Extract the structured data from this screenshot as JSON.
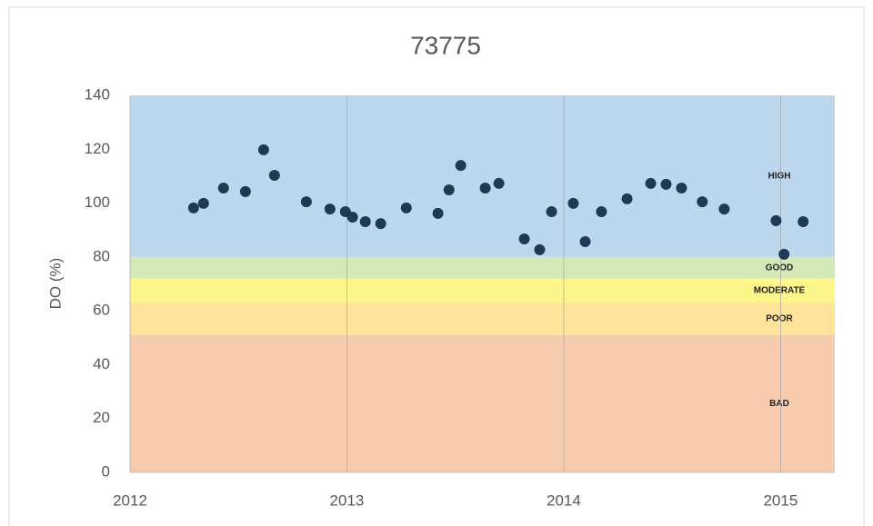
{
  "chart_data": {
    "type": "scatter",
    "title": "73775",
    "y_label": "DO (%)",
    "xlim": [
      2012,
      2015.25
    ],
    "xticks": [
      2012,
      2013,
      2014,
      2015
    ],
    "ylim": [
      0,
      140
    ],
    "yticks": [
      0,
      20,
      40,
      60,
      80,
      100,
      120,
      140
    ],
    "grid": "x",
    "bands": [
      {
        "name": "HIGH",
        "from": 80,
        "to": 140,
        "color": "#bdd7ee"
      },
      {
        "name": "GOOD",
        "from": 72,
        "to": 80,
        "color": "#d3e9b7"
      },
      {
        "name": "MODERATE",
        "from": 63,
        "to": 72,
        "color": "#fdf78b"
      },
      {
        "name": "POOR",
        "from": 51,
        "to": 63,
        "color": "#fde49a"
      },
      {
        "name": "BAD",
        "from": 0,
        "to": 51,
        "color": "#f7cbad"
      }
    ],
    "color": "#203a56",
    "x": [
      2012.293,
      2012.339,
      2012.431,
      2012.532,
      2012.616,
      2012.666,
      2012.813,
      2012.922,
      2012.993,
      2013.026,
      2013.085,
      2013.156,
      2013.274,
      2013.42,
      2013.471,
      2013.525,
      2013.638,
      2013.701,
      2013.818,
      2013.889,
      2013.944,
      2014.044,
      2014.099,
      2014.174,
      2014.292,
      2014.401,
      2014.472,
      2014.543,
      2014.639,
      2014.74,
      2014.979,
      2015.016,
      2015.104
    ],
    "values": [
      98.2,
      99.9,
      105.6,
      104.3,
      119.8,
      110.3,
      100.5,
      97.8,
      96.8,
      94.8,
      93.1,
      92.4,
      98.2,
      96.2,
      104.9,
      114.0,
      105.6,
      107.3,
      86.7,
      82.7,
      96.8,
      99.9,
      85.7,
      96.8,
      101.6,
      107.3,
      107.0,
      105.6,
      100.5,
      97.8,
      93.5,
      81.0,
      93.1
    ]
  }
}
